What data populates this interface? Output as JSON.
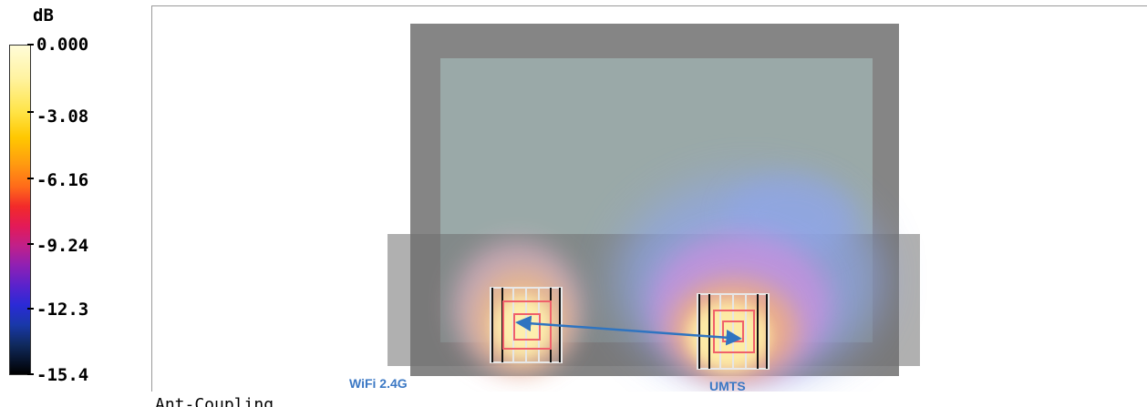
{
  "legend": {
    "unit": "dB",
    "labels": [
      "0.000",
      "-3.08",
      "-6.16",
      "-9.24",
      "-12.3",
      "-15.4"
    ]
  },
  "plot": {
    "annotations": {
      "antenna_1": "WiFi 2.4G",
      "antenna_2": "UMTS"
    },
    "arrow_color": "#2f74c0",
    "label_color": "#3b78c4"
  },
  "footer": {
    "caption": "Ant-Coupling Ratio"
  }
}
